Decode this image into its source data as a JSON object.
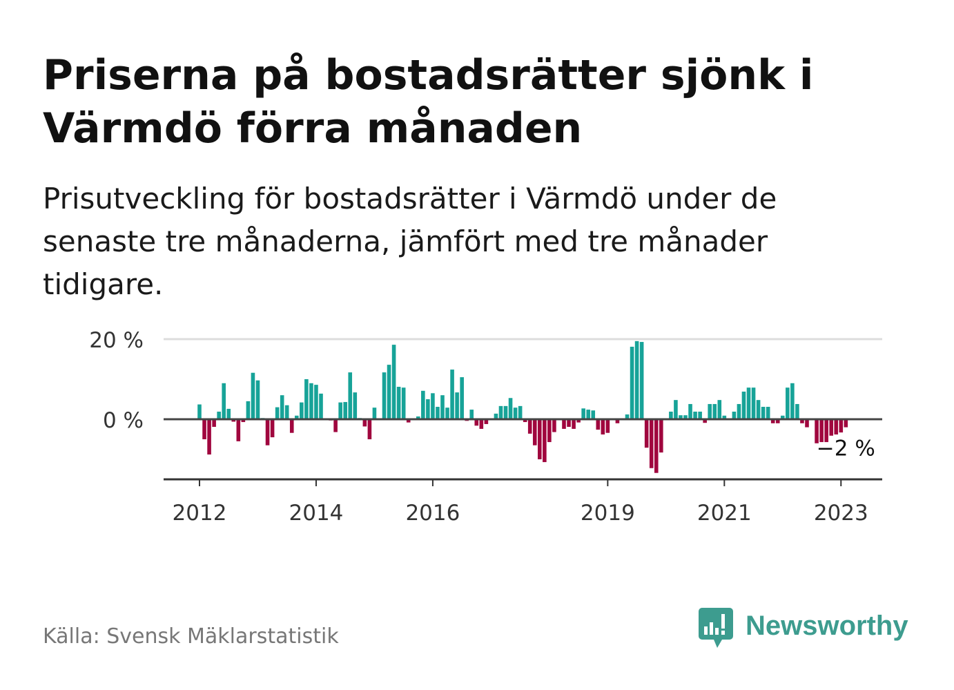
{
  "chart_data": {
    "type": "bar",
    "title": "Priserna på bostadsrätter sjönk i Värmdö förra månaden",
    "subtitle": "Prisutveckling för bostadsrätter i Värmdö under de senaste tre månaderna, jämfört med tre månader tidigare.",
    "x": [
      "2012-01",
      "2012-02",
      "2012-03",
      "2012-04",
      "2012-05",
      "2012-06",
      "2012-07",
      "2012-08",
      "2012-09",
      "2012-10",
      "2012-11",
      "2012-12",
      "2013-01",
      "2013-02",
      "2013-03",
      "2013-04",
      "2013-05",
      "2013-06",
      "2013-07",
      "2013-08",
      "2013-09",
      "2013-10",
      "2013-11",
      "2013-12",
      "2014-01",
      "2014-02",
      "2014-03",
      "2014-04",
      "2014-05",
      "2014-06",
      "2014-07",
      "2014-08",
      "2014-09",
      "2014-10",
      "2014-11",
      "2014-12",
      "2015-01",
      "2015-02",
      "2015-03",
      "2015-04",
      "2015-05",
      "2015-06",
      "2015-07",
      "2015-08",
      "2015-09",
      "2015-10",
      "2015-11",
      "2015-12",
      "2016-01",
      "2016-02",
      "2016-03",
      "2016-04",
      "2016-05",
      "2016-06",
      "2016-07",
      "2016-08",
      "2016-09",
      "2016-10",
      "2016-11",
      "2016-12",
      "2017-01",
      "2017-02",
      "2017-03",
      "2017-04",
      "2017-05",
      "2017-06",
      "2017-07",
      "2017-08",
      "2017-09",
      "2017-10",
      "2017-11",
      "2017-12",
      "2018-01",
      "2018-02",
      "2018-03",
      "2018-04",
      "2018-05",
      "2018-06",
      "2018-07",
      "2018-08",
      "2018-09",
      "2018-10",
      "2018-11",
      "2018-12",
      "2019-01",
      "2019-02",
      "2019-03",
      "2019-04",
      "2019-05",
      "2019-06",
      "2019-07",
      "2019-08",
      "2019-09",
      "2019-10",
      "2019-11",
      "2019-12",
      "2020-01",
      "2020-02",
      "2020-03",
      "2020-04",
      "2020-05",
      "2020-06",
      "2020-07",
      "2020-08",
      "2020-09",
      "2020-10",
      "2020-11",
      "2020-12",
      "2021-01",
      "2021-02",
      "2021-03",
      "2021-04",
      "2021-05",
      "2021-06",
      "2021-07",
      "2021-08",
      "2021-09",
      "2021-10",
      "2021-11",
      "2021-12",
      "2022-01",
      "2022-02",
      "2022-03",
      "2022-04",
      "2022-05",
      "2022-06",
      "2022-07",
      "2022-08",
      "2022-09",
      "2022-10",
      "2022-11",
      "2022-12",
      "2023-01",
      "2023-02"
    ],
    "values": [
      3.7,
      -5.0,
      -8.8,
      -1.9,
      1.9,
      9.0,
      2.6,
      -0.6,
      -5.5,
      -0.7,
      4.5,
      11.6,
      9.7,
      0.3,
      -6.5,
      -4.5,
      3.0,
      6.0,
      3.5,
      -3.4,
      0.9,
      4.2,
      10.0,
      9.0,
      8.6,
      6.4,
      0.2,
      -0.3,
      -3.2,
      4.2,
      4.3,
      11.7,
      6.7,
      0.3,
      -1.8,
      -5.0,
      2.9,
      -0.2,
      11.7,
      13.6,
      18.6,
      8.1,
      7.9,
      -0.8,
      0.2,
      0.7,
      7.1,
      5.0,
      6.5,
      3.1,
      6.0,
      2.9,
      12.4,
      6.7,
      10.5,
      -0.4,
      2.4,
      -1.6,
      -2.4,
      -1.2,
      0.1,
      1.4,
      3.3,
      3.3,
      5.3,
      2.9,
      3.3,
      -0.7,
      -3.6,
      -6.5,
      -10.0,
      -10.7,
      -5.7,
      -3.2,
      -0.2,
      -2.4,
      -1.9,
      -2.4,
      -0.8,
      2.7,
      2.4,
      2.2,
      -2.6,
      -3.8,
      -3.4,
      -0.2,
      -1.0,
      0.2,
      1.2,
      18.1,
      19.5,
      19.3,
      -7.1,
      -12.2,
      -13.4,
      -8.3,
      0.0,
      1.9,
      4.8,
      1.0,
      1.0,
      3.8,
      1.9,
      1.9,
      -0.9,
      3.8,
      3.8,
      4.8,
      0.9,
      0.1,
      1.9,
      3.8,
      6.9,
      7.9,
      7.9,
      4.8,
      3.1,
      3.1,
      -1.0,
      -1.0,
      0.9,
      7.9,
      9.0,
      3.8,
      -1.0,
      -2.0,
      -0.2,
      -6.0,
      -5.7,
      -5.7,
      -4.1,
      -3.8,
      -3.3,
      -2.0
    ],
    "ylim": [
      -15,
      20
    ],
    "y_ticks": [
      {
        "value": 20,
        "label": "20 %"
      },
      {
        "value": 0,
        "label": "0 %"
      }
    ],
    "x_ticks": [
      "2012",
      "2014",
      "2016",
      "2019",
      "2021",
      "2023"
    ],
    "annotation": {
      "x": "2023-02",
      "label": "−2 %"
    },
    "grid": true,
    "colors": {
      "positive": "#17a398",
      "negative": "#a0063e"
    }
  },
  "source": "Källa: Svensk Mäklarstatistik",
  "brand": {
    "name": "Newsworthy",
    "color": "#3d9c8f",
    "icon": "bar-chart-speech-bubble-icon"
  }
}
